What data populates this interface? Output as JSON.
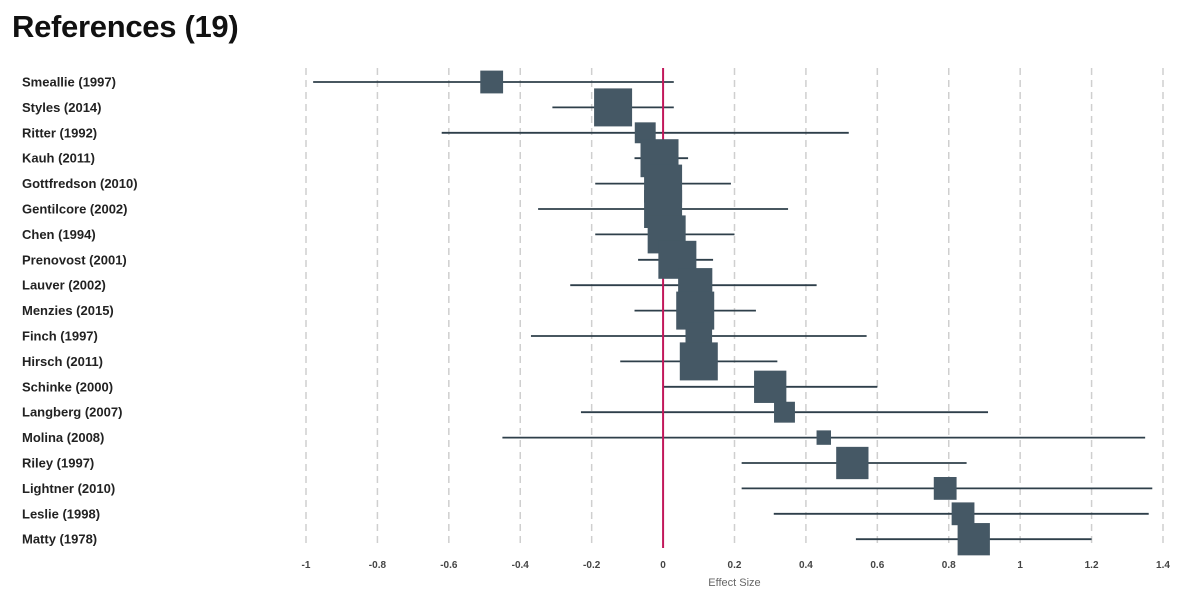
{
  "header": {
    "title": "References (19)"
  },
  "colors": {
    "marker": "#455865",
    "ci_line": "#2e3f4a",
    "zero_line": "#c2185b",
    "grid": "#cfcfcf"
  },
  "chart_data": {
    "type": "forest",
    "xlabel": "Effect Size",
    "xlim": [
      -1,
      1.4
    ],
    "xticks": [
      -1,
      -0.8,
      -0.6,
      -0.4,
      -0.2,
      0,
      0.2,
      0.4,
      0.6,
      0.8,
      1,
      1.2,
      1.4
    ],
    "xtick_labels": [
      "-1",
      "-0.8",
      "-0.6",
      "-0.4",
      "-0.2",
      "0",
      "0.2",
      "0.4",
      "0.6",
      "0.8",
      "1",
      "1.2",
      "1.4"
    ],
    "grid": "vertical-dashed",
    "reference_line": 0,
    "studies": [
      {
        "name": "Smeallie (1997)",
        "effect": -0.48,
        "ci_low": -0.98,
        "ci_high": 0.03,
        "weight": 0.6
      },
      {
        "name": "Styles (2014)",
        "effect": -0.14,
        "ci_low": -0.31,
        "ci_high": 0.03,
        "weight": 1.0
      },
      {
        "name": "Ritter (1992)",
        "effect": -0.05,
        "ci_low": -0.62,
        "ci_high": 0.52,
        "weight": 0.55
      },
      {
        "name": "Kauh (2011)",
        "effect": -0.01,
        "ci_low": -0.08,
        "ci_high": 0.07,
        "weight": 1.0
      },
      {
        "name": "Gottfredson (2010)",
        "effect": 0.0,
        "ci_low": -0.19,
        "ci_high": 0.19,
        "weight": 1.0
      },
      {
        "name": "Gentilcore (2002)",
        "effect": 0.0,
        "ci_low": -0.35,
        "ci_high": 0.35,
        "weight": 1.0
      },
      {
        "name": "Chen (1994)",
        "effect": 0.01,
        "ci_low": -0.19,
        "ci_high": 0.2,
        "weight": 1.0
      },
      {
        "name": "Prenovost (2001)",
        "effect": 0.04,
        "ci_low": -0.07,
        "ci_high": 0.14,
        "weight": 1.0
      },
      {
        "name": "Lauver (2002)",
        "effect": 0.09,
        "ci_low": -0.26,
        "ci_high": 0.43,
        "weight": 0.9
      },
      {
        "name": "Menzies (2015)",
        "effect": 0.09,
        "ci_low": -0.08,
        "ci_high": 0.26,
        "weight": 1.0
      },
      {
        "name": "Finch (1997)",
        "effect": 0.1,
        "ci_low": -0.37,
        "ci_high": 0.57,
        "weight": 0.7
      },
      {
        "name": "Hirsch (2011)",
        "effect": 0.1,
        "ci_low": -0.12,
        "ci_high": 0.32,
        "weight": 1.0
      },
      {
        "name": "Schinke (2000)",
        "effect": 0.3,
        "ci_low": 0.0,
        "ci_high": 0.6,
        "weight": 0.85
      },
      {
        "name": "Langberg (2007)",
        "effect": 0.34,
        "ci_low": -0.23,
        "ci_high": 0.91,
        "weight": 0.55
      },
      {
        "name": "Molina (2008)",
        "effect": 0.45,
        "ci_low": -0.45,
        "ci_high": 1.35,
        "weight": 0.38
      },
      {
        "name": "Riley (1997)",
        "effect": 0.53,
        "ci_low": 0.22,
        "ci_high": 0.85,
        "weight": 0.85
      },
      {
        "name": "Lightner (2010)",
        "effect": 0.79,
        "ci_low": 0.22,
        "ci_high": 1.37,
        "weight": 0.6
      },
      {
        "name": "Leslie (1998)",
        "effect": 0.84,
        "ci_low": 0.31,
        "ci_high": 1.36,
        "weight": 0.6
      },
      {
        "name": "Matty (1978)",
        "effect": 0.87,
        "ci_low": 0.54,
        "ci_high": 1.2,
        "weight": 0.85
      }
    ]
  }
}
